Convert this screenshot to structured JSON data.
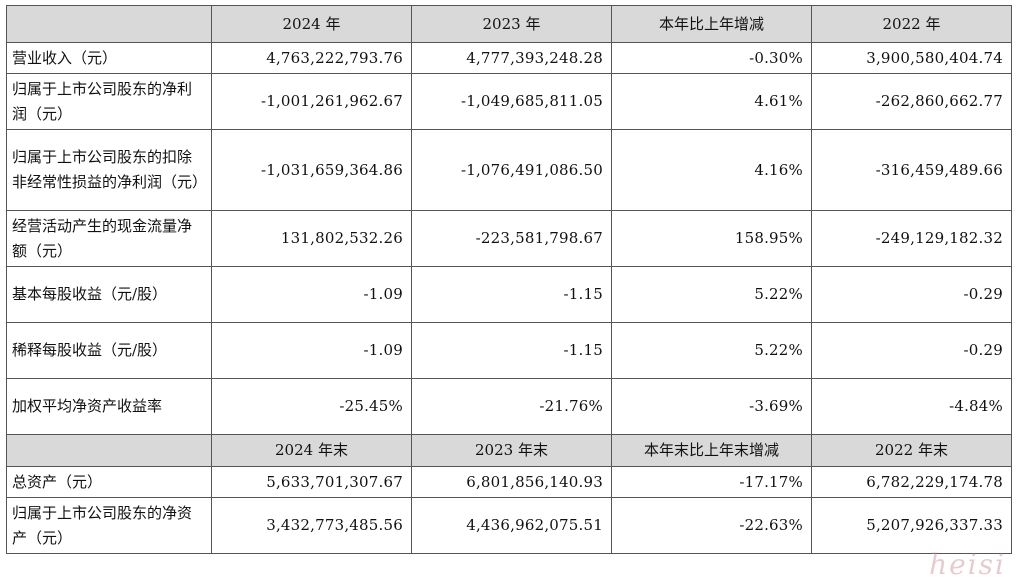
{
  "header1": [
    "",
    "2024 年",
    "2023 年",
    "本年比上年增减",
    "2022 年"
  ],
  "header2": [
    "",
    "2024 年末",
    "2023 年末",
    "本年末比上年末增减",
    "2022 年末"
  ],
  "rows1": [
    {
      "label": "营业收入（元）",
      "values": [
        "4,763,222,793.76",
        "4,777,393,248.28",
        "-0.30%",
        "3,900,580,404.74"
      ]
    },
    {
      "label": "归属于上市公司股东的净利润（元）",
      "values": [
        "-1,001,261,962.67",
        "-1,049,685,811.05",
        "4.61%",
        "-262,860,662.77"
      ]
    },
    {
      "label": "归属于上市公司股东的扣除非经常性损益的净利润（元）",
      "values": [
        "-1,031,659,364.86",
        "-1,076,491,086.50",
        "4.16%",
        "-316,459,489.66"
      ]
    },
    {
      "label": "经营活动产生的现金流量净额（元）",
      "values": [
        "131,802,532.26",
        "-223,581,798.67",
        "158.95%",
        "-249,129,182.32"
      ]
    },
    {
      "label": "基本每股收益（元/股）",
      "values": [
        "-1.09",
        "-1.15",
        "5.22%",
        "-0.29"
      ]
    },
    {
      "label": "稀释每股收益（元/股）",
      "values": [
        "-1.09",
        "-1.15",
        "5.22%",
        "-0.29"
      ]
    },
    {
      "label": "加权平均净资产收益率",
      "values": [
        "-25.45%",
        "-21.76%",
        "-3.69%",
        "-4.84%"
      ]
    }
  ],
  "rows2": [
    {
      "label": "总资产（元）",
      "values": [
        "5,633,701,307.67",
        "6,801,856,140.93",
        "-17.17%",
        "6,782,229,174.78"
      ]
    },
    {
      "label": "归属于上市公司股东的净资产（元）",
      "values": [
        "3,432,773,485.56",
        "4,436,962,075.51",
        "-22.63%",
        "5,207,926,337.33"
      ]
    }
  ],
  "watermark": "heisi"
}
